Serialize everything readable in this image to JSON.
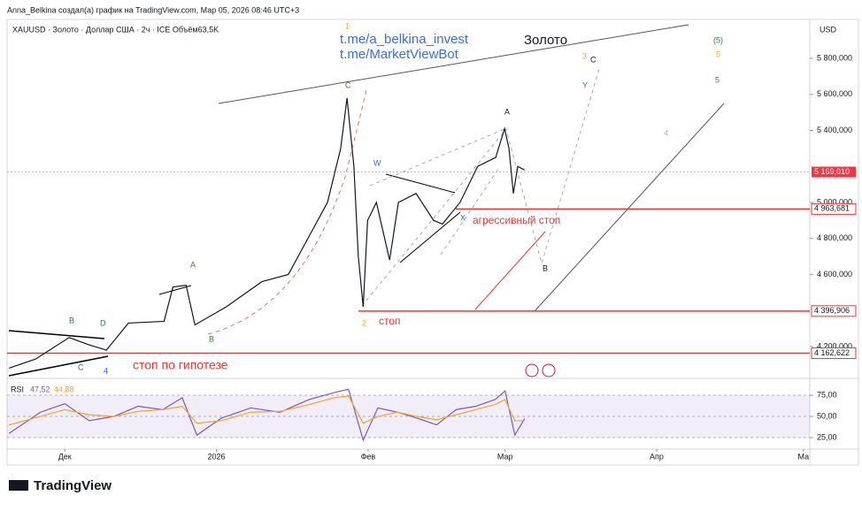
{
  "header": "Anna_Belkina создал(а) график на TradingView.com, Мар 05, 2026 08:46 UTC+3",
  "symbol_line": "XAUUSD · Золото · Доллар США · 2ч · ICE  Объём63,5K",
  "currency": "USD",
  "brand": "TradingView",
  "chart_data": [
    {
      "type": "line",
      "x": [
        -11.4,
        -6,
        0.9,
        4.9,
        8.5,
        13,
        20.3,
        22.1,
        24.8,
        26.6,
        33,
        40.3,
        45.7,
        50.1,
        53.7,
        56.4,
        57.7,
        59.1,
        60,
        61,
        61.9,
        63.7,
        66.4,
        68.2,
        71.8,
        75.4,
        77.2,
        80.8,
        84.4,
        88.1,
        89.9,
        90.8,
        91.7,
        92.6,
        94
      ],
      "series": [
        {
          "color": "#131722",
          "values": [
            4080,
            4130,
            4250,
            4210,
            4180,
            4330,
            4340,
            4530,
            4540,
            4320,
            4420,
            4560,
            4600,
            4820,
            5000,
            5300,
            5580,
            5200,
            4700,
            4420,
            4900,
            5000,
            4680,
            5000,
            5050,
            4900,
            4880,
            5000,
            5200,
            5250,
            5410,
            5300,
            5050,
            5200,
            5180
          ]
        }
      ],
      "xlim": [
        -11.8,
        152.3
      ],
      "xticks": [
        {
          "value": 0,
          "label": "Дек"
        },
        {
          "value": 31,
          "label": "2026"
        },
        {
          "value": 62,
          "label": "Фев"
        },
        {
          "value": 90,
          "label": "Мар"
        },
        {
          "value": 121,
          "label": "Апр"
        },
        {
          "value": 151,
          "label": "Ма"
        }
      ],
      "ylim": [
        4023,
        6016
      ],
      "yticks": [
        {
          "value": 4200,
          "label": "4 200,000"
        },
        {
          "value": 4600,
          "label": "4 600,000"
        },
        {
          "value": 4800,
          "label": "4 800,000"
        },
        {
          "value": 5000,
          "label": "5 000,000"
        },
        {
          "value": 5400,
          "label": "5 400,000"
        },
        {
          "value": 5600,
          "label": "5 600,000"
        },
        {
          "value": 5800,
          "label": "5 800,000"
        }
      ],
      "levels": [
        {
          "value": 4963.681,
          "label": "4 963,681"
        },
        {
          "value": 4396.906,
          "label": "4 396,906"
        },
        {
          "value": 4162.622,
          "label": "4 162,622"
        }
      ],
      "last_price": {
        "value": 5169.01,
        "label": "5 169,010"
      },
      "annotations": [
        "t.me/a_belkina_invest",
        "t.me/MarketViewBot",
        "Золото",
        "агрессивный стоп",
        "стоп",
        "стоп по гипотезе",
        "1",
        "C",
        "2",
        "A",
        "B",
        "W",
        "X",
        "Y",
        "3",
        "C",
        "4",
        "5",
        "(5)",
        "5",
        "A",
        "B",
        "B",
        "D",
        "C",
        "4"
      ]
    },
    {
      "type": "line",
      "title": "RSI",
      "x": [
        -11.4,
        -5,
        0,
        5,
        10,
        15,
        20,
        24,
        27,
        32,
        38,
        44,
        50,
        55,
        58,
        61,
        64,
        68,
        72,
        76,
        80,
        84,
        88,
        90,
        92,
        94
      ],
      "series": [
        {
          "name": "47,52",
          "color": "#7e57c2",
          "values": [
            30,
            55,
            65,
            45,
            50,
            62,
            58,
            72,
            28,
            48,
            60,
            55,
            70,
            78,
            82,
            22,
            60,
            55,
            48,
            40,
            58,
            62,
            70,
            80,
            28,
            47.52
          ]
        },
        {
          "name": "44,88",
          "color": "#f5a623",
          "values": [
            40,
            50,
            58,
            52,
            50,
            56,
            58,
            62,
            42,
            45,
            55,
            56,
            64,
            72,
            74,
            42,
            50,
            55,
            50,
            46,
            52,
            58,
            64,
            70,
            45,
            44.88
          ]
        }
      ],
      "xlim": [
        -11.8,
        152.3
      ],
      "ylim": [
        14.6,
        86.5
      ],
      "yticks": [
        {
          "value": 25,
          "label": "25,00"
        },
        {
          "value": 50,
          "label": "50,00"
        },
        {
          "value": 75,
          "label": "75,00"
        }
      ]
    }
  ]
}
